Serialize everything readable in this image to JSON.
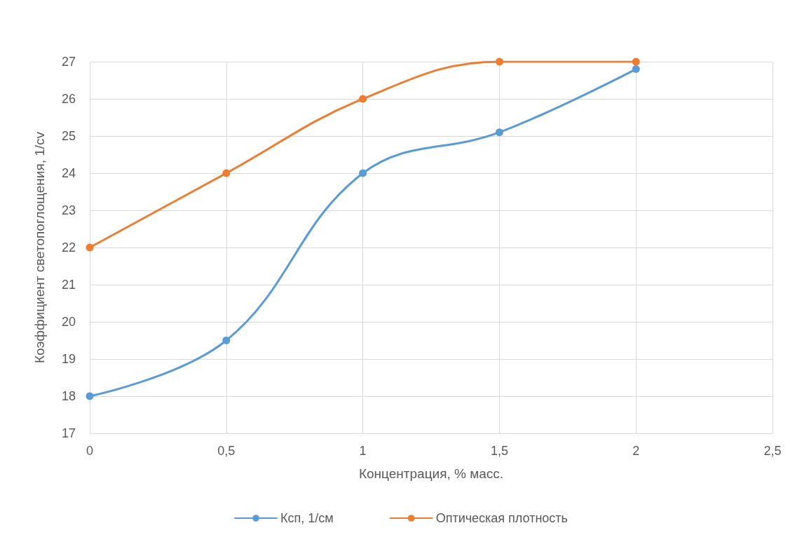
{
  "chart_data": {
    "type": "line",
    "xlabel": "Концентрация, % масс.",
    "ylabel": "Коэффициент светопоглощения, 1/cv",
    "x": [
      0,
      0.5,
      1,
      1.5,
      2
    ],
    "series": [
      {
        "name": "Ксп, 1/см",
        "color": "#5b9bd5",
        "values": [
          18,
          19.5,
          24,
          25.1,
          26.8
        ]
      },
      {
        "name": "Оптическая плотность",
        "color": "#ed7d31",
        "values": [
          22,
          24,
          26,
          27,
          27
        ]
      }
    ],
    "xlim": [
      0,
      2.5
    ],
    "xticks": [
      0,
      {
        "value": 0.5,
        "label": "0,5"
      },
      1,
      {
        "value": 1.5,
        "label": "1,5"
      },
      2,
      {
        "value": 2.5,
        "label": "2,5"
      }
    ],
    "ylim": [
      17,
      27
    ],
    "yticks": [
      17,
      18,
      19,
      20,
      21,
      22,
      23,
      24,
      25,
      26,
      27
    ],
    "grid": true,
    "legend": "bottom",
    "marker": "circle",
    "line_style": "solid"
  }
}
